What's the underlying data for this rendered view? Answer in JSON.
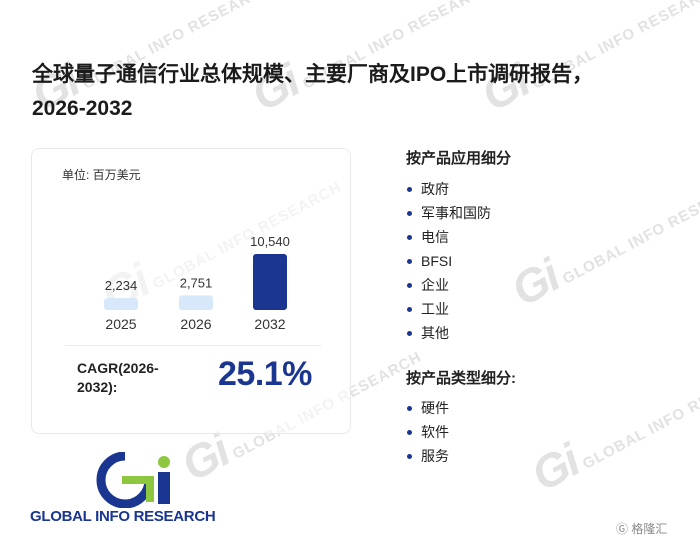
{
  "title": "全球量子通信行业总体规模、主要厂商及IPO上市调研报告，2026-2032",
  "unit": "单位: 百万美元",
  "chart_data": {
    "type": "bar",
    "categories": [
      "2025",
      "2026",
      "2032"
    ],
    "values": [
      2234,
      2751,
      10540
    ],
    "value_labels": [
      "2,234",
      "2,751",
      "10,540"
    ],
    "ylabel": "单位: 百万美元",
    "ylim": [
      0,
      10540
    ],
    "grid": false,
    "colors": [
      "#d6e8fa",
      "#d6e8fa",
      "#1a3690"
    ]
  },
  "cagr": {
    "label": "CAGR(2026-2032):",
    "value": "25.1%"
  },
  "segments": [
    {
      "title": "按产品应用细分",
      "items": [
        "政府",
        "军事和国防",
        "电信",
        "BFSI",
        "企业",
        "工业",
        "其他"
      ]
    },
    {
      "title": "按产品类型细分:",
      "items": [
        "硬件",
        "软件",
        "服务"
      ]
    }
  ],
  "logo": {
    "text": "GLOBAL INFO RESEARCH",
    "colors": {
      "green": "#8dc63f",
      "navy": "#1a3690"
    }
  },
  "watermark": {
    "mark": "Gi",
    "text": "GLOBAL INFO RESEARCH"
  },
  "corner_logo": "格隆汇"
}
